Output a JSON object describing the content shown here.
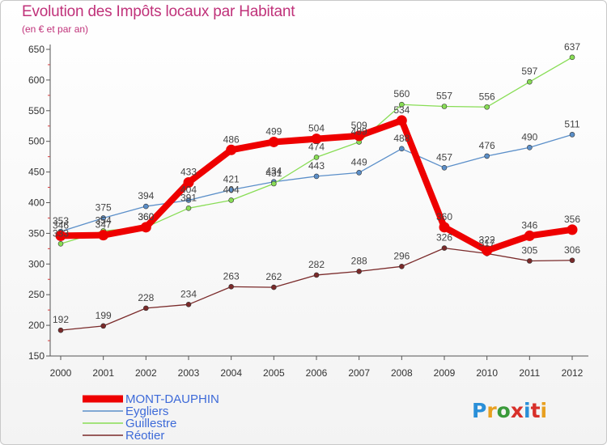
{
  "title": "Evolution des Impôts locaux par Habitant",
  "subtitle": "(en € et par an)",
  "logo": "Proxiti",
  "colors": {
    "title": "#c0327a",
    "MONT-DAUPHIN": "#ee0000",
    "Eygliers": "#5b8fc9",
    "Guillestre": "#88dd55",
    "Réotier": "#7a2a2a"
  },
  "chart_data": {
    "type": "line",
    "title": "Evolution des Impôts locaux par Habitant",
    "subtitle": "(en € et par an)",
    "x": [
      "2000",
      "2001",
      "2002",
      "2003",
      "2004",
      "2005",
      "2006",
      "2007",
      "2008",
      "2009",
      "2010",
      "2011",
      "2012"
    ],
    "ylim": [
      150,
      650
    ],
    "yticks": [
      150,
      200,
      250,
      300,
      350,
      400,
      450,
      500,
      550,
      600,
      650
    ],
    "grid": false,
    "legend": "bottom-left",
    "series": [
      {
        "name": "MONT-DAUPHIN",
        "values": [
          346,
          347,
          360,
          433,
          486,
          499,
          504,
          509,
          534,
          360,
          322,
          346,
          356
        ]
      },
      {
        "name": "Eygliers",
        "values": [
          353,
          375,
          394,
          404,
          421,
          434,
          443,
          449,
          488,
          457,
          476,
          490,
          511
        ]
      },
      {
        "name": "Guillestre",
        "values": [
          333,
          354,
          360,
          391,
          404,
          431,
          474,
          499,
          560,
          557,
          556,
          597,
          637
        ]
      },
      {
        "name": "Réotier",
        "values": [
          192,
          199,
          228,
          234,
          263,
          262,
          282,
          288,
          296,
          326,
          317,
          305,
          306
        ]
      }
    ]
  }
}
